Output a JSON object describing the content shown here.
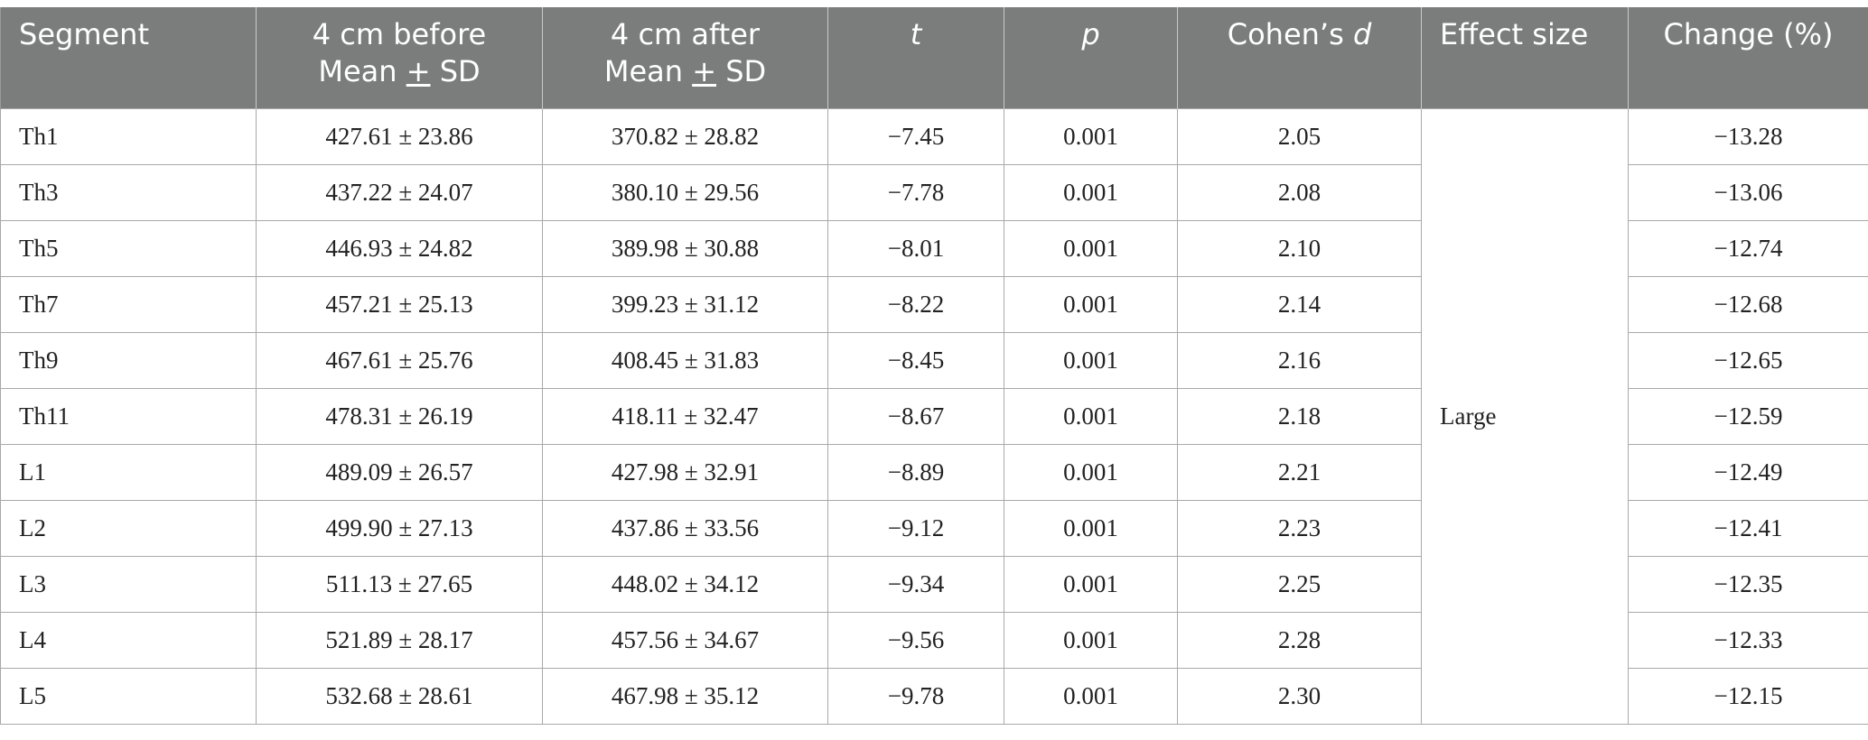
{
  "table": {
    "headers": {
      "segment": "Segment",
      "before_line1": "4 cm before",
      "before_line2_a": "Mean ",
      "before_line2_pm": "+",
      "before_line2_b": " SD",
      "after_line1": "4 cm after",
      "after_line2_a": "Mean ",
      "after_line2_pm": "+",
      "after_line2_b": " SD",
      "t": "t",
      "p": "p",
      "cohens_a": "Cohen’s ",
      "cohens_d": "d",
      "effect_size": "Effect size",
      "change": "Change (%)"
    },
    "effect_size_value": "Large",
    "rows": [
      {
        "segment": "Th1",
        "before": "427.61 ± 23.86",
        "after": "370.82 ± 28.82",
        "t": "−7.45",
        "p": "0.001",
        "d": "2.05",
        "change": "−13.28"
      },
      {
        "segment": "Th3",
        "before": "437.22 ± 24.07",
        "after": "380.10 ± 29.56",
        "t": "−7.78",
        "p": "0.001",
        "d": "2.08",
        "change": "−13.06"
      },
      {
        "segment": "Th5",
        "before": "446.93 ± 24.82",
        "after": "389.98 ± 30.88",
        "t": "−8.01",
        "p": "0.001",
        "d": "2.10",
        "change": "−12.74"
      },
      {
        "segment": "Th7",
        "before": "457.21 ± 25.13",
        "after": "399.23 ± 31.12",
        "t": "−8.22",
        "p": "0.001",
        "d": "2.14",
        "change": "−12.68"
      },
      {
        "segment": "Th9",
        "before": "467.61 ± 25.76",
        "after": "408.45 ± 31.83",
        "t": "−8.45",
        "p": "0.001",
        "d": "2.16",
        "change": "−12.65"
      },
      {
        "segment": "Th11",
        "before": "478.31 ± 26.19",
        "after": "418.11 ± 32.47",
        "t": "−8.67",
        "p": "0.001",
        "d": "2.18",
        "change": "−12.59"
      },
      {
        "segment": "L1",
        "before": "489.09 ± 26.57",
        "after": "427.98 ± 32.91",
        "t": "−8.89",
        "p": "0.001",
        "d": "2.21",
        "change": "−12.49"
      },
      {
        "segment": "L2",
        "before": "499.90 ± 27.13",
        "after": "437.86 ± 33.56",
        "t": "−9.12",
        "p": "0.001",
        "d": "2.23",
        "change": "−12.41"
      },
      {
        "segment": "L3",
        "before": "511.13 ± 27.65",
        "after": "448.02 ± 34.12",
        "t": "−9.34",
        "p": "0.001",
        "d": "2.25",
        "change": "−12.35"
      },
      {
        "segment": "L4",
        "before": "521.89 ± 28.17",
        "after": "457.56 ± 34.67",
        "t": "−9.56",
        "p": "0.001",
        "d": "2.28",
        "change": "−12.33"
      },
      {
        "segment": "L5",
        "before": "532.68 ± 28.61",
        "after": "467.98 ± 35.12",
        "t": "−9.78",
        "p": "0.001",
        "d": "2.30",
        "change": "−12.15"
      }
    ]
  }
}
